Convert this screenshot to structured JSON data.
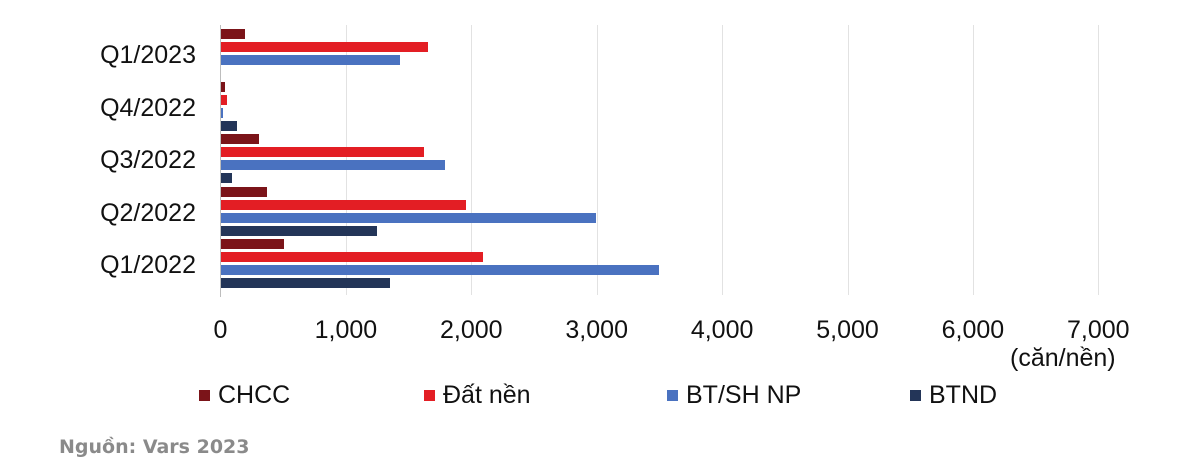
{
  "chart_data": {
    "type": "bar",
    "orientation": "horizontal",
    "title": "",
    "xlabel": "(căn/nền)",
    "ylabel": "",
    "xlim": [
      0,
      7000
    ],
    "x_ticks": [
      "0",
      "1,000",
      "2,000",
      "3,000",
      "4,000",
      "5,000",
      "6,000",
      "7,000"
    ],
    "categories": [
      "Q1/2023",
      "Q4/2022",
      "Q3/2022",
      "Q2/2022",
      "Q1/2022"
    ],
    "series": [
      {
        "name": "CHCC",
        "color": "#7b1419",
        "values": [
          190,
          30,
          305,
          370,
          500
        ]
      },
      {
        "name": "Đất nền",
        "color": "#e31e24",
        "values": [
          1650,
          45,
          1620,
          1950,
          2090
        ]
      },
      {
        "name": "BT/SH NP",
        "color": "#4a72c0",
        "values": [
          1430,
          15,
          1790,
          2990,
          3490
        ]
      },
      {
        "name": "BTND",
        "color": "#233558",
        "values": [
          0,
          125,
          85,
          1245,
          1345
        ]
      }
    ],
    "grid": true,
    "legend_position": "bottom"
  },
  "source_note": "Nguồn: Vars 2023"
}
